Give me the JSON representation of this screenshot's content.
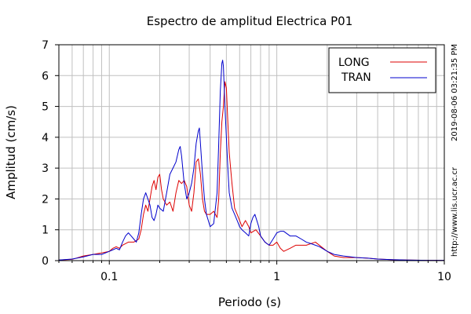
{
  "chart_data": {
    "type": "line",
    "title": "Espectro de amplitud Electrica P01",
    "xlabel": "Periodo (s)",
    "ylabel": "Amplitud (cm/s)",
    "x_scale": "log",
    "xlim": [
      0.05,
      10
    ],
    "ylim": [
      0,
      7
    ],
    "x_tick_labels": [
      {
        "value": 0.1,
        "label": "0.1"
      },
      {
        "value": 1,
        "label": "1"
      },
      {
        "value": 10,
        "label": "10"
      }
    ],
    "y_ticks": [
      0,
      1,
      2,
      3,
      4,
      5,
      6,
      7
    ],
    "grid": true,
    "legend_position": "top-right",
    "side_text_timestamp": "2019-08-06 03:21:35 PM",
    "side_text_url": "http://www.lis.ucr.ac.cr",
    "series": [
      {
        "name": "LONG",
        "color": "#dd0000",
        "points": [
          [
            0.05,
            0.02
          ],
          [
            0.06,
            0.04
          ],
          [
            0.07,
            0.15
          ],
          [
            0.08,
            0.2
          ],
          [
            0.09,
            0.25
          ],
          [
            0.1,
            0.3
          ],
          [
            0.105,
            0.4
          ],
          [
            0.11,
            0.45
          ],
          [
            0.115,
            0.4
          ],
          [
            0.12,
            0.5
          ],
          [
            0.13,
            0.6
          ],
          [
            0.14,
            0.6
          ],
          [
            0.15,
            0.7
          ],
          [
            0.155,
            1.0
          ],
          [
            0.16,
            1.5
          ],
          [
            0.165,
            1.8
          ],
          [
            0.17,
            1.6
          ],
          [
            0.175,
            2.0
          ],
          [
            0.18,
            2.4
          ],
          [
            0.185,
            2.6
          ],
          [
            0.19,
            2.3
          ],
          [
            0.195,
            2.7
          ],
          [
            0.2,
            2.8
          ],
          [
            0.205,
            2.3
          ],
          [
            0.21,
            2.0
          ],
          [
            0.22,
            1.8
          ],
          [
            0.23,
            1.9
          ],
          [
            0.24,
            1.6
          ],
          [
            0.25,
            2.2
          ],
          [
            0.26,
            2.6
          ],
          [
            0.27,
            2.5
          ],
          [
            0.28,
            2.6
          ],
          [
            0.29,
            2.4
          ],
          [
            0.3,
            1.8
          ],
          [
            0.31,
            1.6
          ],
          [
            0.32,
            2.2
          ],
          [
            0.33,
            3.2
          ],
          [
            0.34,
            3.3
          ],
          [
            0.35,
            2.8
          ],
          [
            0.36,
            2.0
          ],
          [
            0.37,
            1.6
          ],
          [
            0.38,
            1.5
          ],
          [
            0.4,
            1.5
          ],
          [
            0.42,
            1.6
          ],
          [
            0.44,
            1.4
          ],
          [
            0.45,
            2.0
          ],
          [
            0.46,
            3.5
          ],
          [
            0.47,
            4.5
          ],
          [
            0.48,
            5.0
          ],
          [
            0.49,
            5.8
          ],
          [
            0.5,
            5.6
          ],
          [
            0.51,
            4.5
          ],
          [
            0.52,
            3.5
          ],
          [
            0.54,
            2.5
          ],
          [
            0.56,
            1.7
          ],
          [
            0.58,
            1.5
          ],
          [
            0.6,
            1.3
          ],
          [
            0.62,
            1.1
          ],
          [
            0.65,
            1.3
          ],
          [
            0.68,
            1.1
          ],
          [
            0.7,
            0.9
          ],
          [
            0.75,
            1.0
          ],
          [
            0.8,
            0.8
          ],
          [
            0.85,
            0.6
          ],
          [
            0.9,
            0.5
          ],
          [
            0.95,
            0.5
          ],
          [
            1.0,
            0.6
          ],
          [
            1.05,
            0.4
          ],
          [
            1.1,
            0.3
          ],
          [
            1.2,
            0.4
          ],
          [
            1.3,
            0.5
          ],
          [
            1.5,
            0.5
          ],
          [
            1.7,
            0.6
          ],
          [
            2.0,
            0.3
          ],
          [
            2.2,
            0.15
          ],
          [
            2.5,
            0.1
          ],
          [
            3.0,
            0.1
          ],
          [
            3.5,
            0.08
          ],
          [
            4.0,
            0.05
          ],
          [
            5.0,
            0.03
          ],
          [
            6.0,
            0.02
          ],
          [
            8.0,
            0.01
          ],
          [
            10.0,
            0.01
          ]
        ]
      },
      {
        "name": "TRAN",
        "color": "#0000cc",
        "points": [
          [
            0.05,
            0.02
          ],
          [
            0.06,
            0.05
          ],
          [
            0.07,
            0.12
          ],
          [
            0.08,
            0.2
          ],
          [
            0.09,
            0.2
          ],
          [
            0.1,
            0.3
          ],
          [
            0.105,
            0.35
          ],
          [
            0.11,
            0.4
          ],
          [
            0.115,
            0.35
          ],
          [
            0.12,
            0.6
          ],
          [
            0.125,
            0.8
          ],
          [
            0.13,
            0.9
          ],
          [
            0.135,
            0.8
          ],
          [
            0.14,
            0.7
          ],
          [
            0.145,
            0.6
          ],
          [
            0.15,
            0.9
          ],
          [
            0.155,
            1.5
          ],
          [
            0.16,
            2.0
          ],
          [
            0.165,
            2.2
          ],
          [
            0.17,
            2.0
          ],
          [
            0.175,
            1.8
          ],
          [
            0.18,
            1.4
          ],
          [
            0.185,
            1.3
          ],
          [
            0.19,
            1.5
          ],
          [
            0.195,
            1.8
          ],
          [
            0.2,
            1.7
          ],
          [
            0.21,
            1.6
          ],
          [
            0.22,
            2.2
          ],
          [
            0.23,
            2.8
          ],
          [
            0.24,
            3.0
          ],
          [
            0.25,
            3.2
          ],
          [
            0.26,
            3.6
          ],
          [
            0.265,
            3.7
          ],
          [
            0.27,
            3.4
          ],
          [
            0.28,
            2.5
          ],
          [
            0.29,
            2.0
          ],
          [
            0.3,
            2.2
          ],
          [
            0.31,
            2.5
          ],
          [
            0.32,
            3.0
          ],
          [
            0.33,
            3.8
          ],
          [
            0.34,
            4.2
          ],
          [
            0.345,
            4.3
          ],
          [
            0.35,
            3.8
          ],
          [
            0.36,
            2.8
          ],
          [
            0.37,
            2.0
          ],
          [
            0.38,
            1.5
          ],
          [
            0.39,
            1.3
          ],
          [
            0.4,
            1.1
          ],
          [
            0.42,
            1.2
          ],
          [
            0.44,
            2.2
          ],
          [
            0.45,
            3.8
          ],
          [
            0.46,
            5.5
          ],
          [
            0.47,
            6.4
          ],
          [
            0.475,
            6.5
          ],
          [
            0.48,
            6.3
          ],
          [
            0.49,
            5.0
          ],
          [
            0.5,
            4.0
          ],
          [
            0.51,
            3.0
          ],
          [
            0.52,
            2.2
          ],
          [
            0.54,
            1.7
          ],
          [
            0.56,
            1.5
          ],
          [
            0.58,
            1.3
          ],
          [
            0.6,
            1.1
          ],
          [
            0.62,
            1.0
          ],
          [
            0.65,
            0.9
          ],
          [
            0.68,
            0.8
          ],
          [
            0.7,
            1.2
          ],
          [
            0.72,
            1.4
          ],
          [
            0.74,
            1.5
          ],
          [
            0.76,
            1.3
          ],
          [
            0.78,
            1.1
          ],
          [
            0.8,
            0.8
          ],
          [
            0.85,
            0.6
          ],
          [
            0.9,
            0.5
          ],
          [
            0.95,
            0.7
          ],
          [
            1.0,
            0.9
          ],
          [
            1.05,
            0.95
          ],
          [
            1.1,
            0.95
          ],
          [
            1.2,
            0.8
          ],
          [
            1.3,
            0.8
          ],
          [
            1.4,
            0.7
          ],
          [
            1.5,
            0.6
          ],
          [
            1.6,
            0.55
          ],
          [
            1.7,
            0.5
          ],
          [
            1.8,
            0.45
          ],
          [
            2.0,
            0.3
          ],
          [
            2.2,
            0.2
          ],
          [
            2.5,
            0.15
          ],
          [
            3.0,
            0.1
          ],
          [
            3.5,
            0.08
          ],
          [
            4.0,
            0.05
          ],
          [
            5.0,
            0.03
          ],
          [
            6.0,
            0.02
          ],
          [
            8.0,
            0.01
          ],
          [
            10.0,
            0.01
          ]
        ]
      }
    ]
  }
}
